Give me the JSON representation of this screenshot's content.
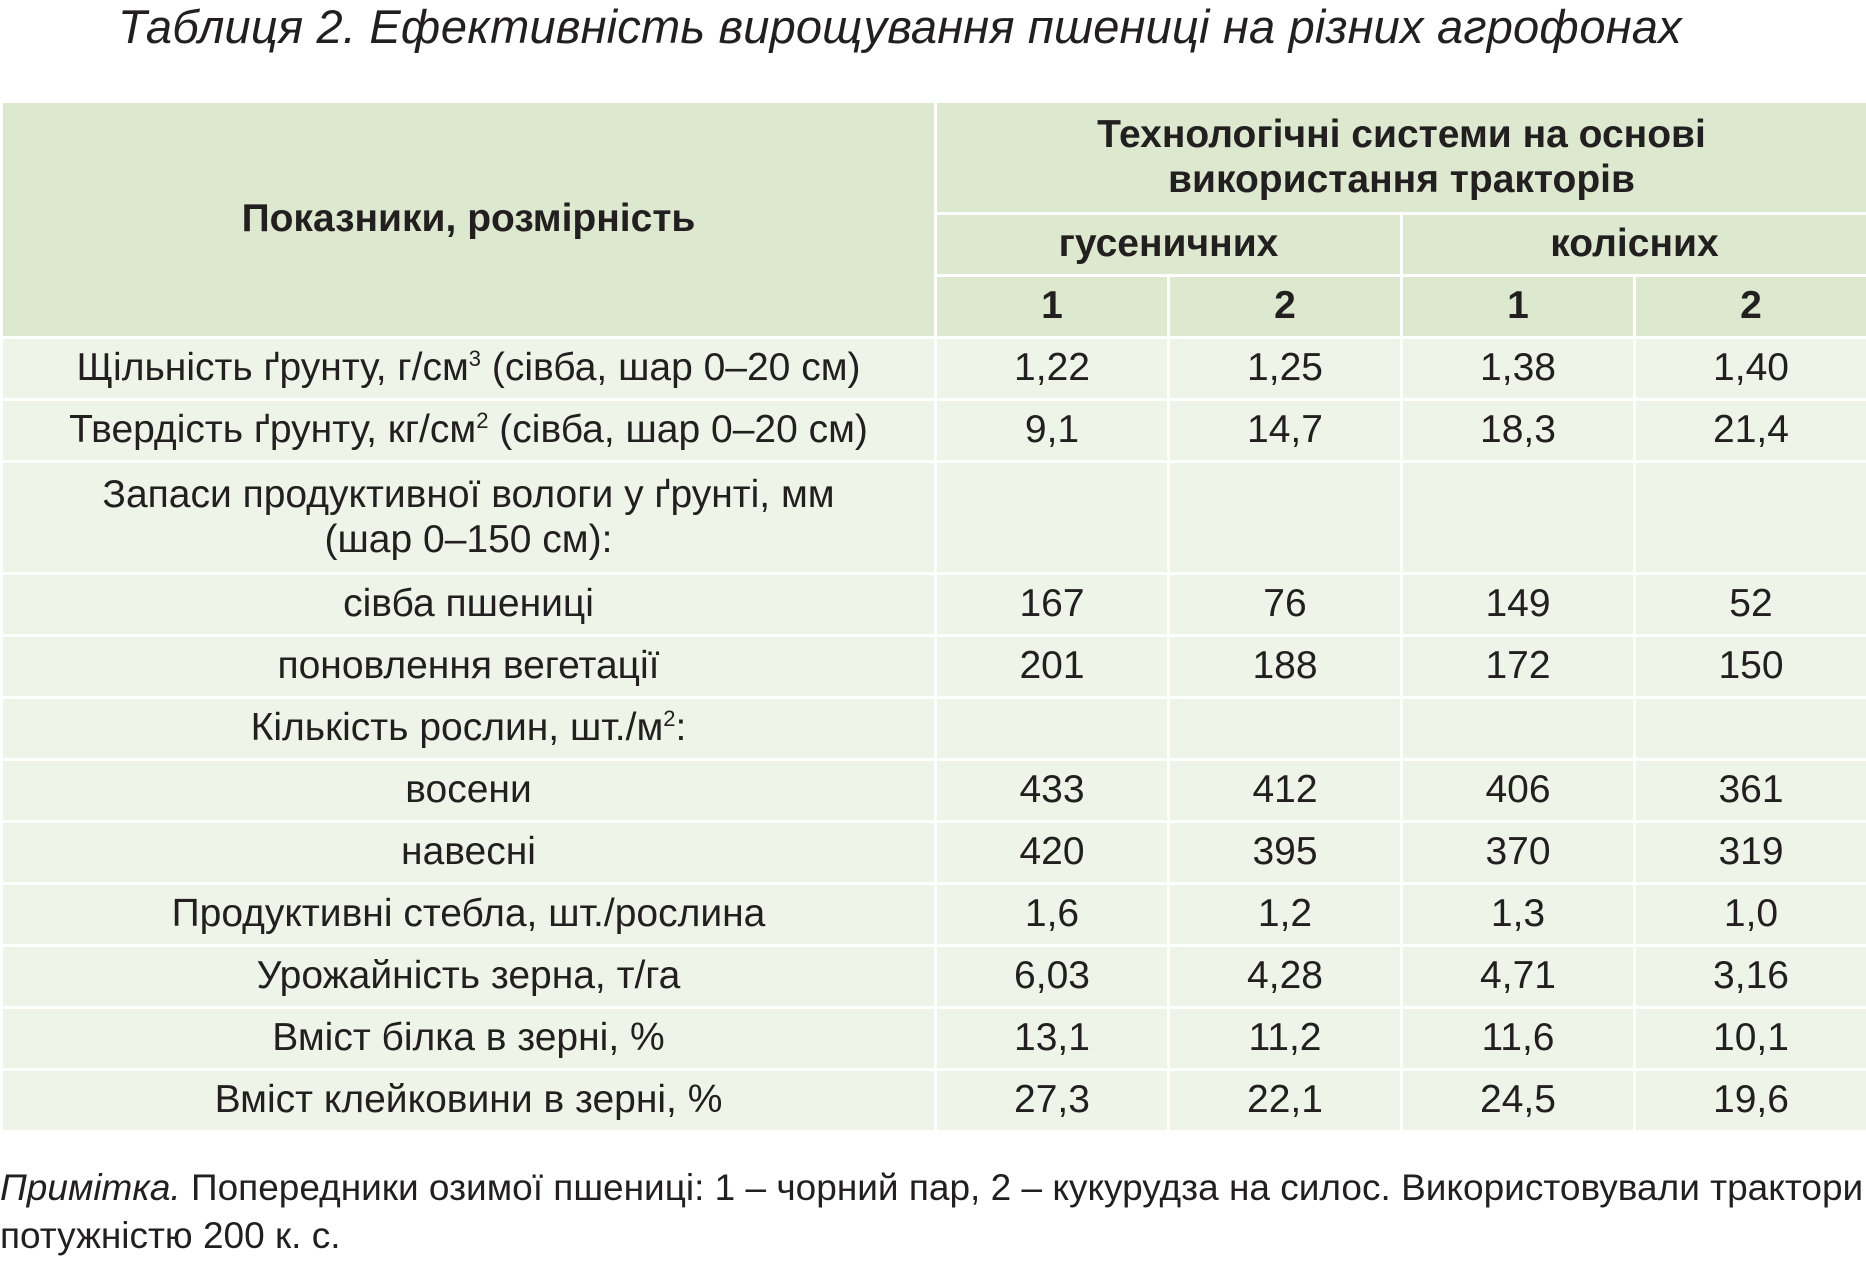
{
  "title": "Таблиця 2. Ефективність вирощування пшениці на різних агрофонах",
  "header": {
    "indicator_label": "Показники, розмірність",
    "systems_line1": "Технологічні системи на основі",
    "systems_line2": "використання тракторів",
    "group_tracked": "гусеничних",
    "group_wheeled": "колісних",
    "col_numbers": [
      "1",
      "2",
      "1",
      "2"
    ]
  },
  "rows": [
    {
      "label": "Щільність ґрунту, г/см",
      "sup": "3",
      "label_suffix": " (сівба, шар 0–20 см)",
      "values": [
        "1,22",
        "1,25",
        "1,38",
        "1,40"
      ]
    },
    {
      "label": "Твердість ґрунту, кг/см",
      "sup": "2",
      "label_suffix": " (сівба, шар 0–20 см)",
      "values": [
        "9,1",
        "14,7",
        "18,3",
        "21,4"
      ]
    },
    {
      "label": "Запаси продуктивної вологи у ґрунті, мм",
      "label_line2": "(шар 0–150 см):",
      "values": [
        "",
        "",
        "",
        ""
      ]
    },
    {
      "label": "сівба пшениці",
      "values": [
        "167",
        "76",
        "149",
        "52"
      ]
    },
    {
      "label": "поновлення вегетації",
      "values": [
        "201",
        "188",
        "172",
        "150"
      ]
    },
    {
      "label": "Кількість рослин, шт./м",
      "sup": "2",
      "label_suffix": ":",
      "values": [
        "",
        "",
        "",
        ""
      ]
    },
    {
      "label": "восени",
      "values": [
        "433",
        "412",
        "406",
        "361"
      ]
    },
    {
      "label": "навесні",
      "values": [
        "420",
        "395",
        "370",
        "319"
      ]
    },
    {
      "label": "Продуктивні стебла, шт./рослина",
      "values": [
        "1,6",
        "1,2",
        "1,3",
        "1,0"
      ]
    },
    {
      "label": "Урожайність зерна, т/га",
      "values": [
        "6,03",
        "4,28",
        "4,71",
        "3,16"
      ]
    },
    {
      "label": "Вміст білка в зерні, %",
      "values": [
        "13,1",
        "11,2",
        "11,6",
        "10,1"
      ]
    },
    {
      "label": "Вміст клейковини в зерні, %",
      "values": [
        "27,3",
        "22,1",
        "24,5",
        "19,6"
      ]
    }
  ],
  "note": {
    "prefix": "Примітка.",
    "text": " Попередники озимої пшениці: 1 – чорний пар, 2 – кукурудза на силос. Використовували трактори потужністю 200 к. с."
  },
  "colors": {
    "header_bg": "#dce9cf",
    "body_bg": "#eef4e7",
    "text": "#231f20"
  }
}
